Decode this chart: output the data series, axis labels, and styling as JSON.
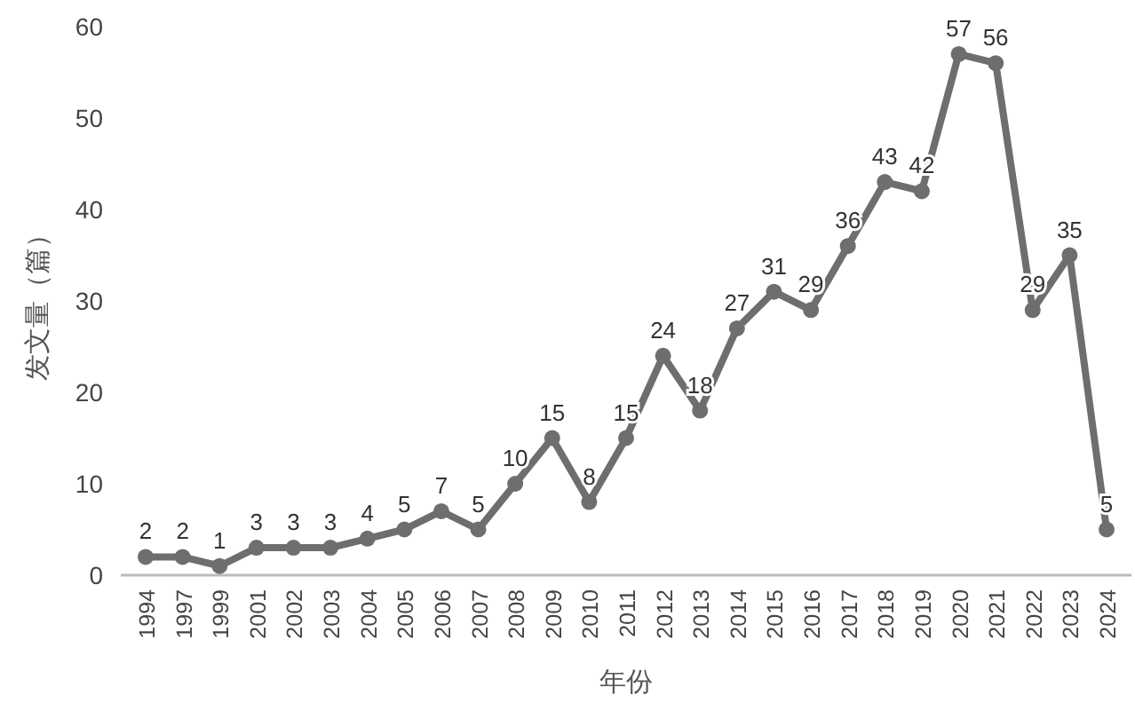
{
  "chart_data": {
    "type": "line",
    "xlabel": "年份",
    "ylabel": "发文量（篇）",
    "categories": [
      "1994",
      "1997",
      "1999",
      "2001",
      "2002",
      "2003",
      "2004",
      "2005",
      "2006",
      "2007",
      "2008",
      "2009",
      "2010",
      "2011",
      "2012",
      "2013",
      "2014",
      "2015",
      "2016",
      "2017",
      "2018",
      "2019",
      "2020",
      "2021",
      "2022",
      "2023",
      "2024"
    ],
    "series": [
      {
        "color": "#6e6e6e",
        "values": [
          2,
          2,
          1,
          3,
          3,
          3,
          4,
          5,
          7,
          5,
          10,
          15,
          8,
          15,
          24,
          18,
          27,
          31,
          29,
          36,
          43,
          42,
          57,
          56,
          29,
          35,
          5
        ]
      }
    ],
    "ylim": [
      0,
      60
    ],
    "yticks": [
      0,
      10,
      20,
      30,
      40,
      50,
      60
    ],
    "data_labels": true,
    "marker": "circle",
    "line_style": "solid",
    "grid": false
  }
}
